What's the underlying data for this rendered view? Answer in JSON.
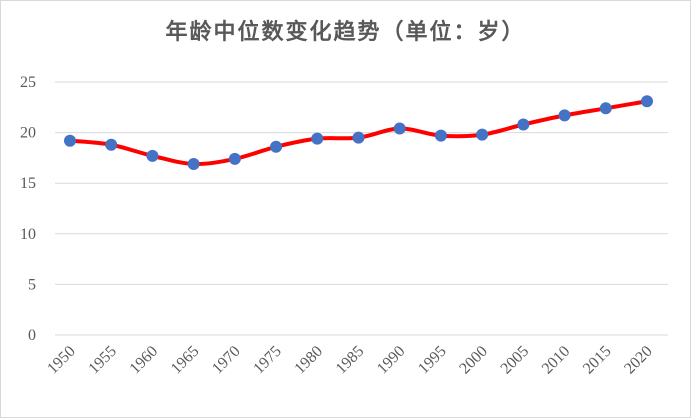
{
  "chart_data": {
    "type": "line",
    "title": "年龄中位数变化趋势（单位：岁）",
    "xlabel": "",
    "ylabel": "",
    "x": [
      "1950",
      "1955",
      "1960",
      "1965",
      "1970",
      "1975",
      "1980",
      "1985",
      "1990",
      "1995",
      "2000",
      "2005",
      "2010",
      "2015",
      "2020"
    ],
    "series": [
      {
        "values": [
          19.2,
          18.8,
          17.7,
          16.9,
          17.4,
          18.6,
          19.4,
          19.5,
          20.4,
          19.7,
          19.8,
          20.8,
          21.7,
          22.4,
          23.1
        ]
      }
    ],
    "ylim": [
      0,
      25
    ],
    "yticks": [
      0,
      5,
      10,
      15,
      20,
      25
    ],
    "grid": true,
    "legend": "none",
    "colors": {
      "line": "#ff0000",
      "marker": "#4472c4",
      "grid": "#d9d9d9",
      "text": "#595959"
    }
  }
}
